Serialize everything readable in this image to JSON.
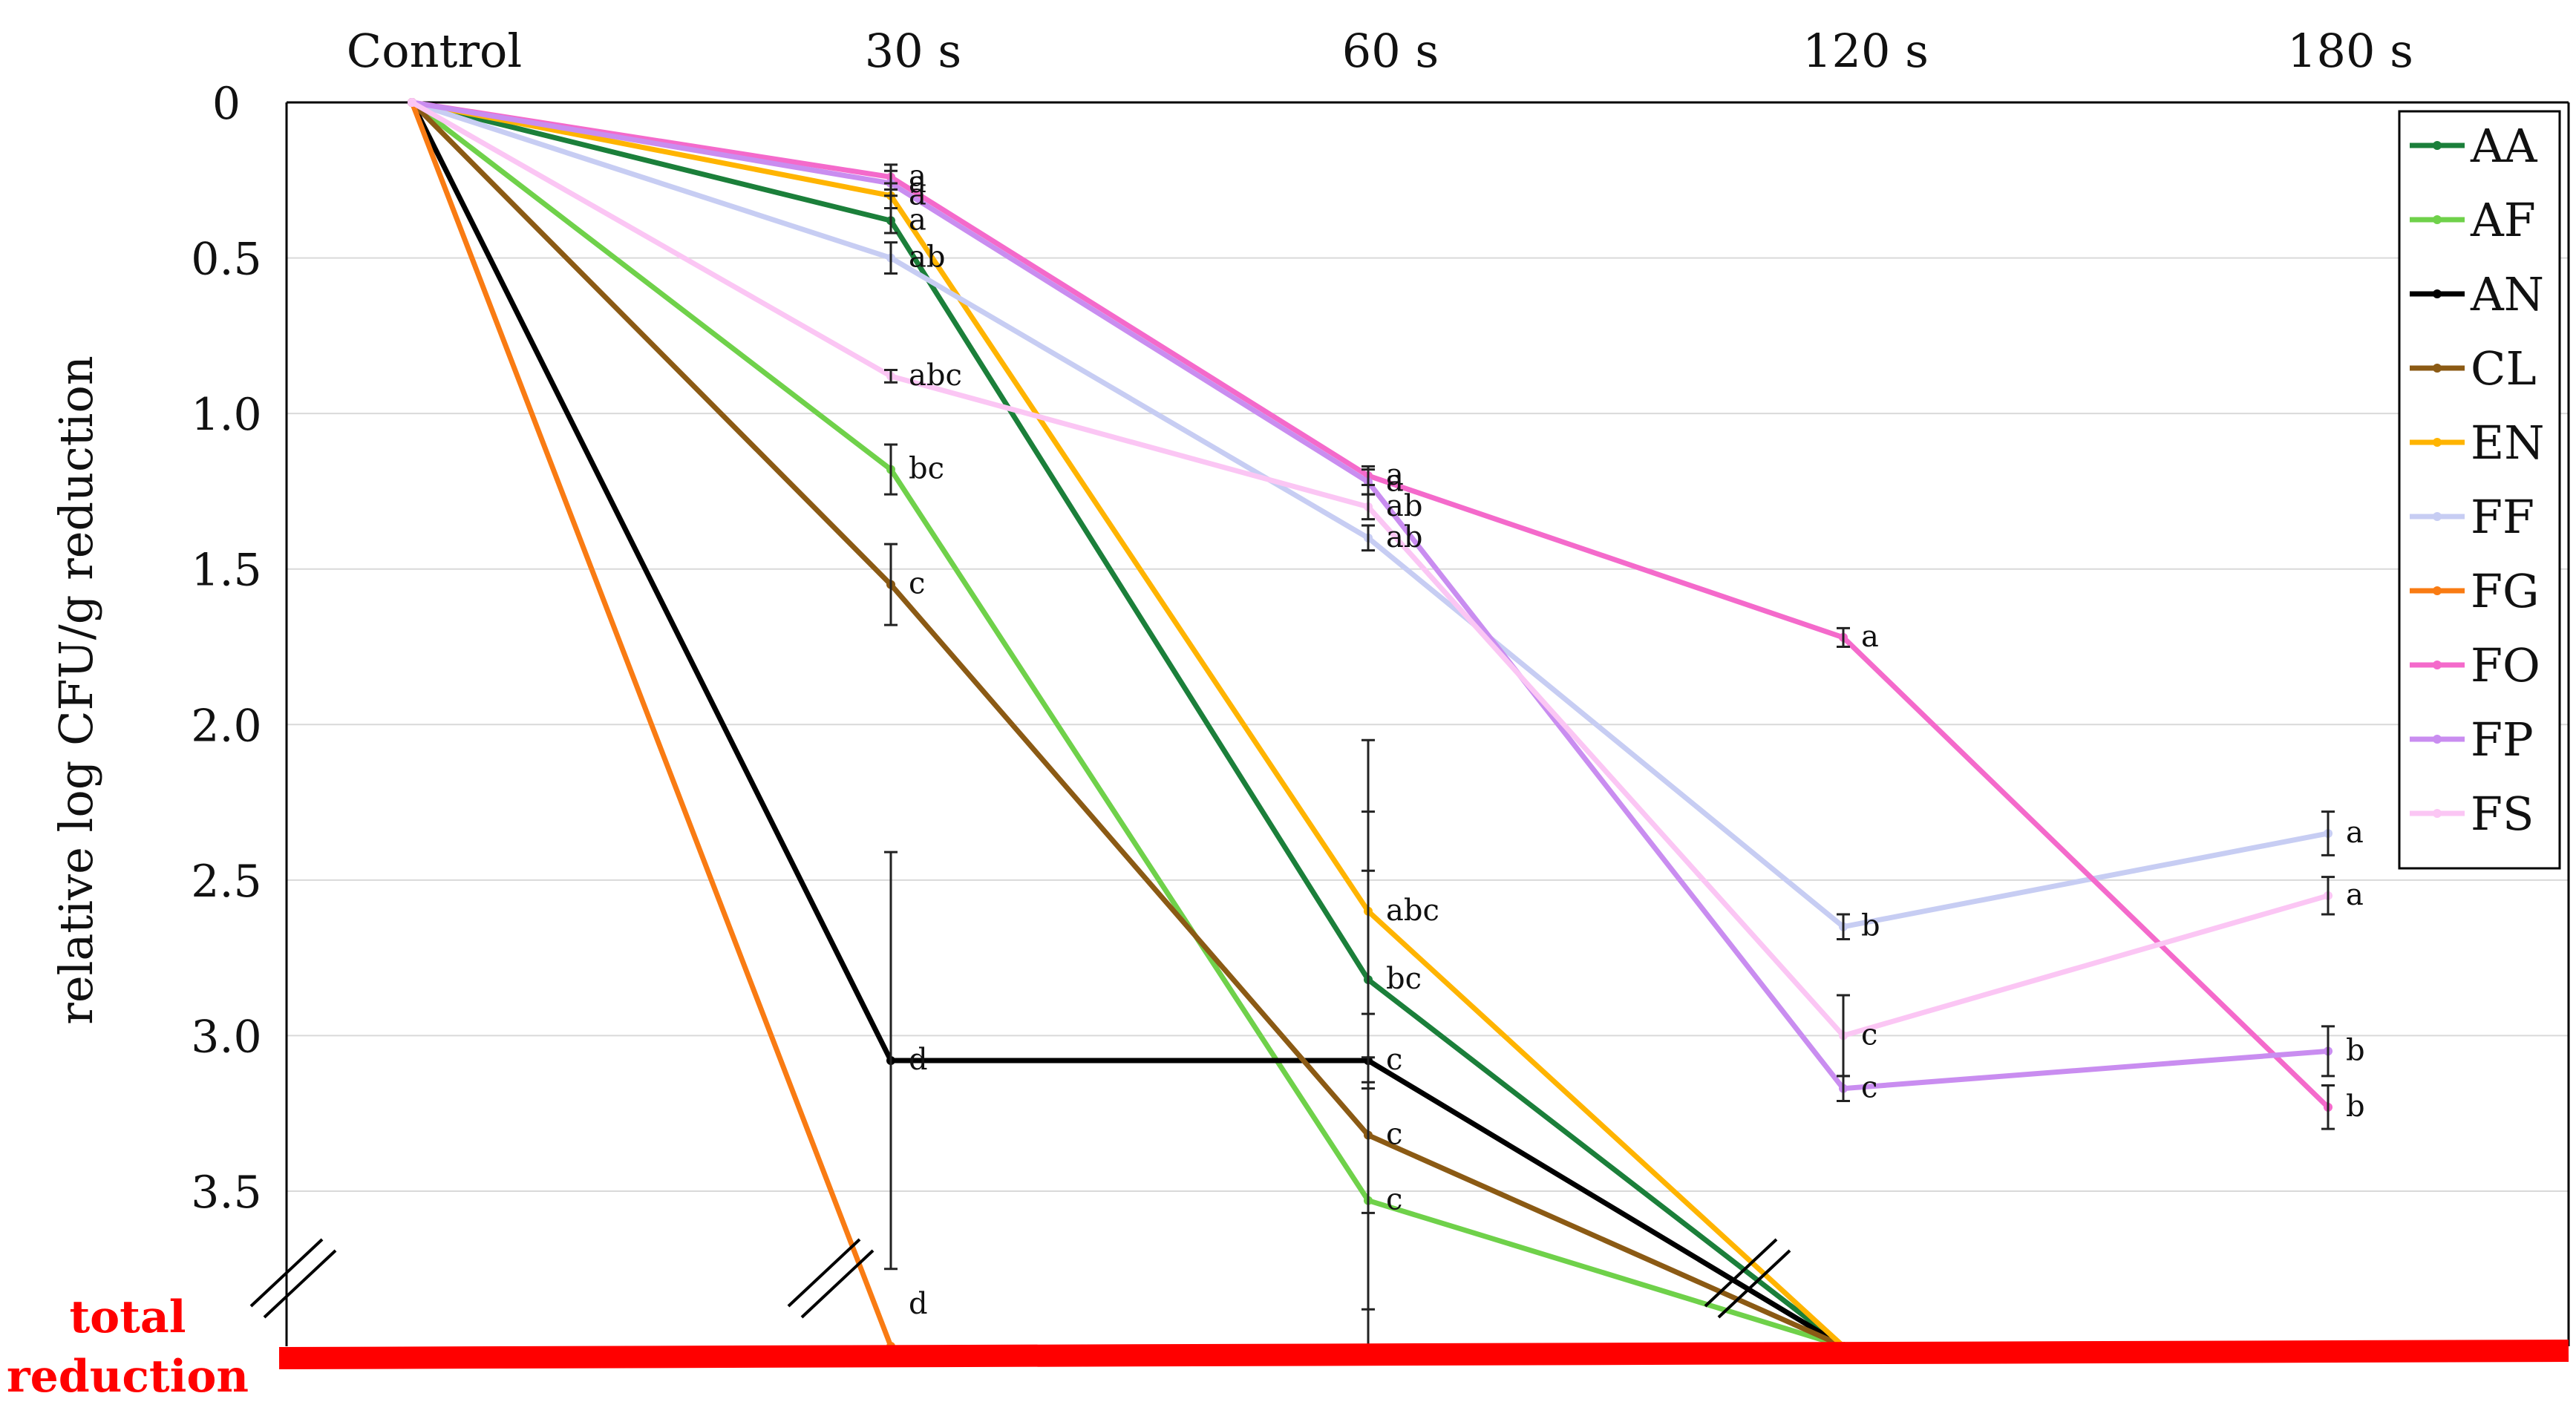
{
  "chart_data": {
    "type": "line",
    "title": "",
    "xlabel": "",
    "ylabel": "relative log CFU/g reduction",
    "categories": [
      "Control",
      "30 s",
      "60 s",
      "120 s",
      "180 s"
    ],
    "y_ticks": [
      "0",
      "0.5",
      "1.0",
      "1.5",
      "2.0",
      "2.5",
      "3.0",
      "3.5"
    ],
    "ylim": [
      0,
      4.0
    ],
    "y_inverted": true,
    "y_axis_break": true,
    "total_reduction_label": "total reduction",
    "total_reduction_value": 4.0,
    "total_reduction_color": "#ff0000",
    "grid": true,
    "legend_position": "top-right",
    "series": [
      {
        "name": "AA",
        "color": "#1b7f3a",
        "values": [
          0,
          0.38,
          2.82,
          4.0,
          null
        ],
        "errors": [
          0,
          0.04,
          0.35,
          0,
          null
        ],
        "letters": [
          "",
          "a",
          "bc",
          "",
          ""
        ]
      },
      {
        "name": "AF",
        "color": "#6fd14a",
        "values": [
          0,
          1.18,
          3.53,
          4.0,
          null
        ],
        "errors": [
          0,
          0.08,
          0.6,
          0,
          null
        ],
        "letters": [
          "",
          "bc",
          "c",
          "",
          ""
        ]
      },
      {
        "name": "AN",
        "color": "#000000",
        "values": [
          0,
          3.08,
          3.08,
          4.0,
          null
        ],
        "errors": [
          0,
          0.67,
          0.8,
          0,
          null
        ],
        "letters": [
          "",
          "d",
          "c",
          "",
          ""
        ]
      },
      {
        "name": "CL",
        "color": "#8b5a14",
        "values": [
          0,
          1.55,
          3.32,
          4.0,
          null
        ],
        "errors": [
          0,
          0.13,
          0.25,
          0,
          null
        ],
        "letters": [
          "",
          "c",
          "c",
          "",
          ""
        ]
      },
      {
        "name": "EN",
        "color": "#ffb400",
        "values": [
          0,
          0.3,
          2.6,
          4.0,
          null
        ],
        "errors": [
          0,
          0.04,
          0.55,
          0,
          null
        ],
        "letters": [
          "",
          "a",
          "abc",
          "",
          ""
        ]
      },
      {
        "name": "FF",
        "color": "#c7cdf3",
        "values": [
          0,
          0.5,
          1.4,
          2.65,
          2.35
        ],
        "errors": [
          0,
          0.05,
          0.04,
          0.04,
          0.07
        ],
        "letters": [
          "",
          "ab",
          "ab",
          "b",
          "a"
        ]
      },
      {
        "name": "FG",
        "color": "#f97b13",
        "values": [
          0,
          4.0,
          null,
          null,
          null
        ],
        "errors": [
          0,
          0,
          null,
          null,
          null
        ],
        "letters": [
          "",
          "d",
          "",
          "",
          ""
        ]
      },
      {
        "name": "FO",
        "color": "#f46acb",
        "values": [
          0,
          0.24,
          1.2,
          1.72,
          3.23
        ],
        "errors": [
          0,
          0.04,
          0.03,
          0.03,
          0.07
        ],
        "letters": [
          "",
          "a",
          "a",
          "a",
          "b"
        ]
      },
      {
        "name": "FP",
        "color": "#c98df0",
        "values": [
          0,
          0.26,
          1.22,
          3.17,
          3.05
        ],
        "errors": [
          0,
          0.04,
          0.04,
          0.04,
          0.08
        ],
        "letters": [
          "",
          "a",
          "a",
          "c",
          "b"
        ]
      },
      {
        "name": "FS",
        "color": "#fbc6f4",
        "values": [
          0,
          0.88,
          1.3,
          3.0,
          2.55
        ],
        "errors": [
          0,
          0.02,
          0.04,
          0.13,
          0.06
        ],
        "letters": [
          "",
          "abc",
          "ab",
          "c",
          "a"
        ]
      }
    ]
  }
}
